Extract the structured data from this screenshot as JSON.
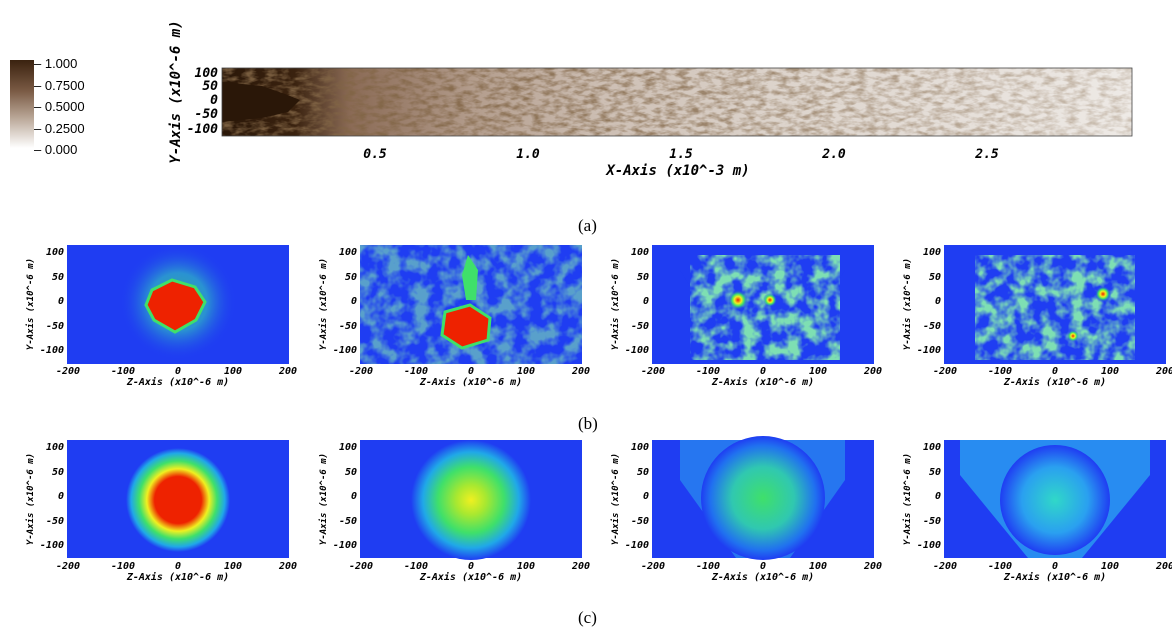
{
  "colorbar": {
    "ticks": [
      "1.000",
      "0.7500",
      "0.5000",
      "0.2500",
      "0.000"
    ]
  },
  "panel_a": {
    "ylabel": "Y-Axis (x10^-6 m)",
    "xlabel": "X-Axis (x10^-3 m)",
    "yticks": [
      "100",
      "50",
      "0",
      "-50",
      "-100"
    ],
    "xticks": [
      "0.5",
      "1.0",
      "1.5",
      "2.0",
      "2.5"
    ]
  },
  "small_plot": {
    "ylabel": "Y-Axis (x10^-6 m)",
    "xlabel": "Z-Axis (x10^-6 m)",
    "yticks": [
      "100",
      "50",
      "0",
      "-50",
      "-100"
    ],
    "xticks": [
      "-200",
      "-100",
      "0",
      "100",
      "200"
    ]
  },
  "captions": {
    "a": "(a)",
    "b": "(b)",
    "c": "(c)"
  },
  "colors": {
    "blue": "#1f3df2",
    "green": "#3fe06a",
    "yellow": "#f0f020",
    "red": "#ee2200",
    "brown": "#3a220f"
  }
}
